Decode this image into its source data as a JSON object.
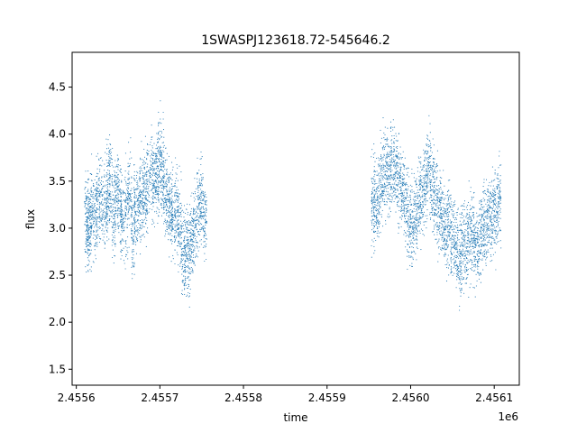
{
  "chart_data": {
    "type": "scatter",
    "title": "1SWASPJ123618.72-545646.2",
    "xlabel": "time",
    "ylabel": "flux",
    "x_offset_label": "1e6",
    "xlim": [
      2455595,
      2456130
    ],
    "ylim": [
      1.33,
      4.87
    ],
    "x_ticks": [
      2455600,
      2455700,
      2455800,
      2455900,
      2456000,
      2456100
    ],
    "x_tick_labels": [
      "2.4556",
      "2.4557",
      "2.4558",
      "2.4559",
      "2.4560",
      "2.4561"
    ],
    "y_ticks": [
      1.5,
      2.0,
      2.5,
      3.0,
      3.5,
      4.0,
      4.5
    ],
    "y_tick_labels": [
      "1.5",
      "2.0",
      "2.5",
      "3.0",
      "3.5",
      "4.0",
      "4.5"
    ],
    "grid": false,
    "marker_color": "#1f77b4",
    "series": [
      {
        "x": [
          2455612,
          2455614,
          2455616,
          2455619,
          2455623,
          2455626,
          2455630,
          2455635,
          2455638,
          2455641,
          2455645,
          2455648,
          2455652,
          2455655,
          2455660,
          2455664,
          2455668,
          2455671,
          2455675,
          2455678,
          2455682,
          2455685,
          2455690,
          2455694,
          2455697,
          2455700,
          2455703,
          2455706,
          2455710,
          2455713,
          2455716,
          2455720,
          2455724,
          2455728,
          2455731,
          2455735,
          2455738,
          2455742,
          2455746,
          2455750,
          2455754
        ],
        "y": [
          3.1,
          3.0,
          3.05,
          3.2,
          3.15,
          3.3,
          3.2,
          3.25,
          3.4,
          3.5,
          3.15,
          3.4,
          3.3,
          3.1,
          3.15,
          3.35,
          3.0,
          3.25,
          3.2,
          3.3,
          3.35,
          3.45,
          3.6,
          3.5,
          3.55,
          3.75,
          3.6,
          3.4,
          3.3,
          3.2,
          3.1,
          3.2,
          3.0,
          2.7,
          2.8,
          2.75,
          2.9,
          3.0,
          3.2,
          3.3,
          3.1
        ]
      },
      {
        "x": [
          2455955,
          2455958,
          2455962,
          2455966,
          2455970,
          2455974,
          2455978,
          2455982,
          2455986,
          2455990,
          2455994,
          2455998,
          2456002,
          2456006,
          2456010,
          2456014,
          2456018,
          2456022,
          2456026,
          2456030,
          2456034,
          2456038,
          2456042,
          2456046,
          2456050,
          2456054,
          2456058,
          2456062,
          2456066,
          2456070,
          2456074,
          2456078,
          2456082,
          2456086,
          2456090,
          2456094,
          2456098,
          2456102,
          2456106
        ],
        "y": [
          3.3,
          3.25,
          3.35,
          3.5,
          3.6,
          3.55,
          3.7,
          3.6,
          3.5,
          3.4,
          3.3,
          3.1,
          3.0,
          3.2,
          3.3,
          3.35,
          3.5,
          3.6,
          3.45,
          3.35,
          3.2,
          3.1,
          2.95,
          3.05,
          2.9,
          2.85,
          2.7,
          2.8,
          2.85,
          2.9,
          2.95,
          2.75,
          2.9,
          3.0,
          3.05,
          3.1,
          3.2,
          3.15,
          3.3
        ]
      }
    ]
  }
}
